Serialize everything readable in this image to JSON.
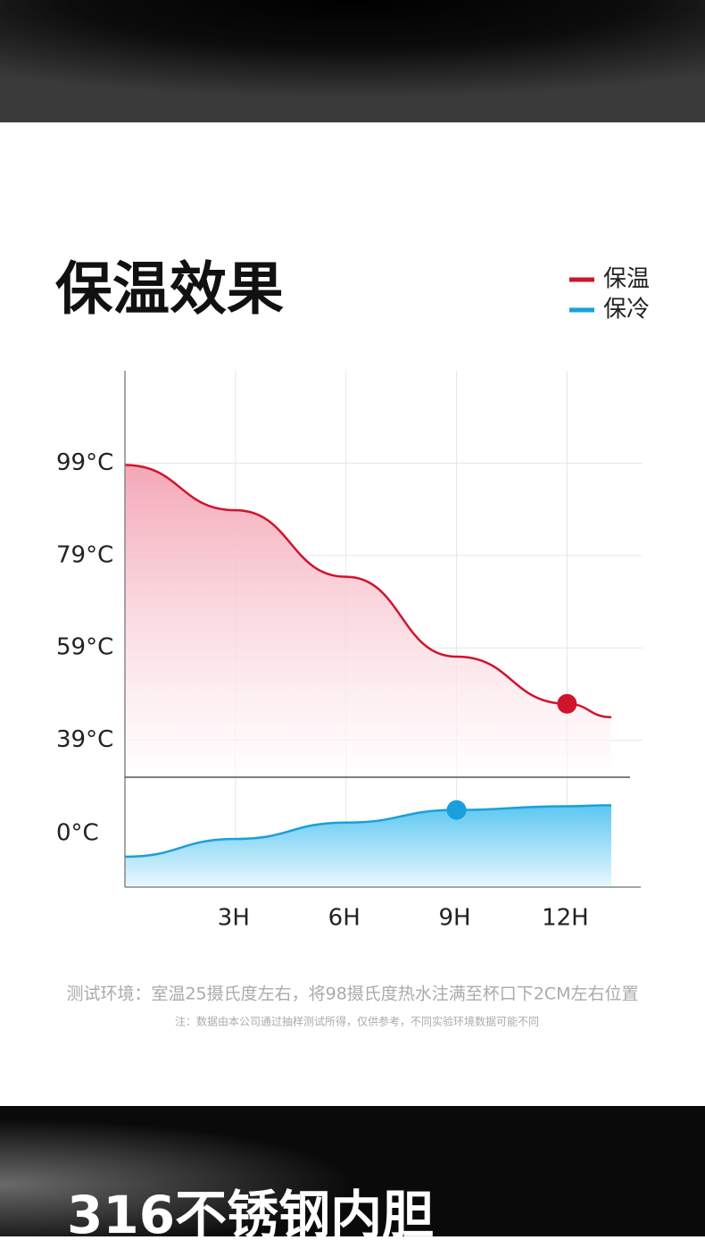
{
  "chart_data": {
    "type": "line",
    "title": "保温效果",
    "x": [
      0,
      3,
      6,
      9,
      12,
      13.2
    ],
    "xlim": [
      0,
      14
    ],
    "xticks": [
      {
        "value": 3,
        "label": "3H"
      },
      {
        "value": 6,
        "label": "6H"
      },
      {
        "value": 9,
        "label": "9H"
      },
      {
        "value": 12,
        "label": "12H"
      }
    ],
    "ylim": [
      31,
      119
    ],
    "yticks": [
      {
        "value": 99,
        "label": "99°C"
      },
      {
        "value": 79,
        "label": "79°C"
      },
      {
        "value": 59,
        "label": "59°C"
      },
      {
        "value": 39,
        "label": "39°C"
      }
    ],
    "y2lim": [
      -11.5,
      12
    ],
    "y2ticks": [
      {
        "value": 0,
        "label": "0°C"
      }
    ],
    "grid": true,
    "series": [
      {
        "name": "保温",
        "color": "#d0142c",
        "values": [
          98.6,
          88.8,
          74.4,
          57.1,
          46.9,
          44
        ],
        "highlight": 4
      },
      {
        "name": "保冷",
        "color": "#1a9fdc",
        "values": [
          -5,
          -1.2,
          2.3,
          5,
          5.8,
          6
        ],
        "axis": "y2",
        "highlight": 3
      }
    ]
  },
  "footnote": "测试环境：室温25摄氏度左右，将98摄氏度热水注满至杯口下2CM左右位置",
  "note": "注：数据由本公司通过抽样测试所得，仅供参考，不同实验环境数据可能不同",
  "next_section_title": "316不锈钢内胆"
}
